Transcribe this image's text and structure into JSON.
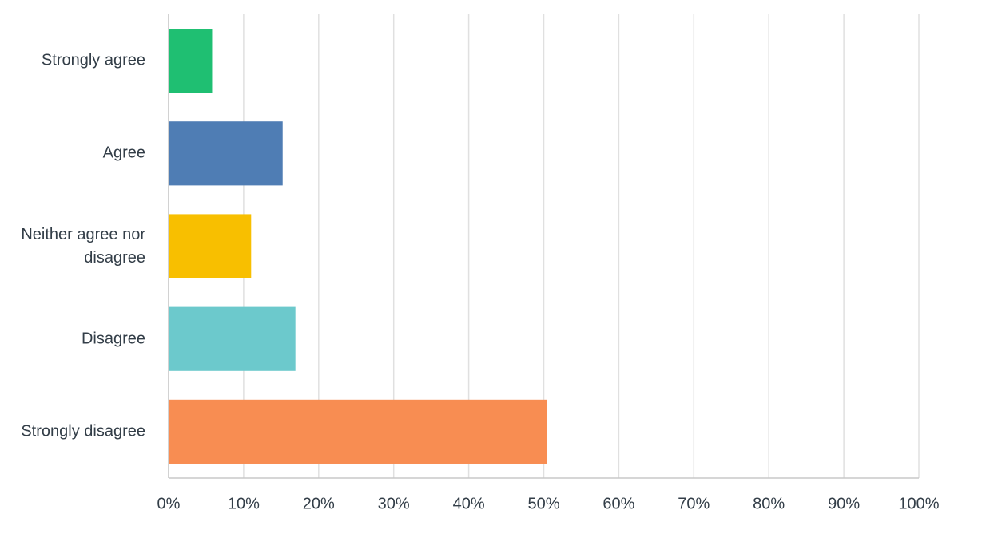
{
  "chart_data": {
    "type": "bar",
    "orientation": "horizontal",
    "categories": [
      "Strongly agree",
      "Agree",
      "Neither agree nor disagree",
      "Disagree",
      "Strongly disagree"
    ],
    "values": [
      5.8,
      15.2,
      11.0,
      16.9,
      50.4
    ],
    "colors": [
      "#1fbf72",
      "#4f7db4",
      "#f8bf00",
      "#6cc9cc",
      "#f88d52"
    ],
    "xlim": [
      0,
      100
    ],
    "xticks": [
      {
        "value": 0,
        "label": "0%"
      },
      {
        "value": 10,
        "label": "10%"
      },
      {
        "value": 20,
        "label": "20%"
      },
      {
        "value": 30,
        "label": "30%"
      },
      {
        "value": 40,
        "label": "40%"
      },
      {
        "value": 50,
        "label": "50%"
      },
      {
        "value": 60,
        "label": "60%"
      },
      {
        "value": 70,
        "label": "70%"
      },
      {
        "value": 80,
        "label": "80%"
      },
      {
        "value": 90,
        "label": "90%"
      },
      {
        "value": 100,
        "label": "100%"
      }
    ],
    "grid": true
  }
}
